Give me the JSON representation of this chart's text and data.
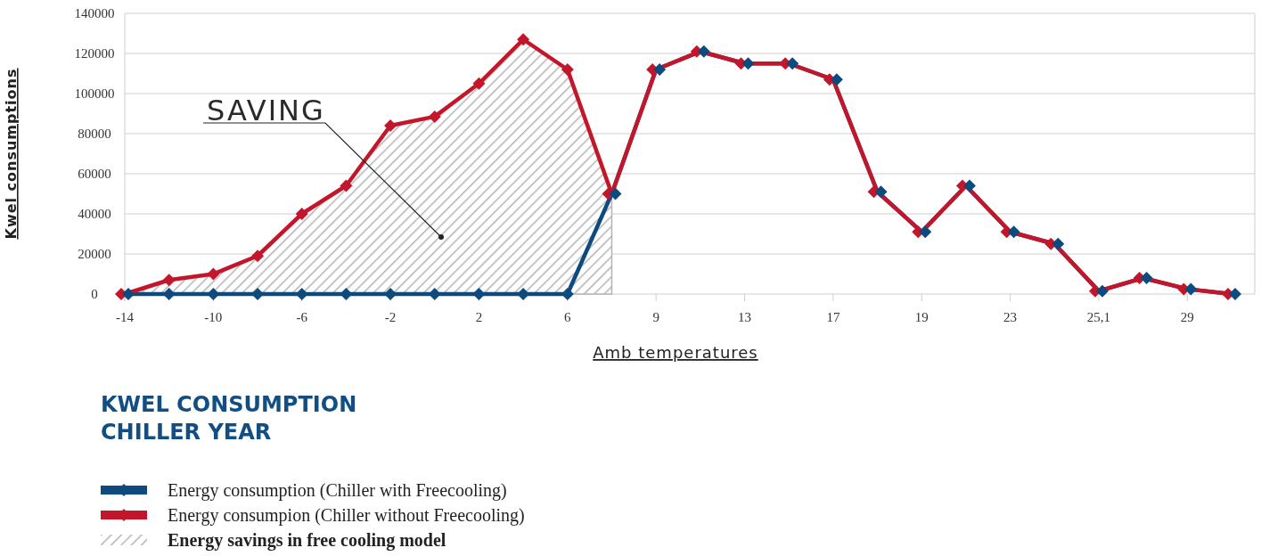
{
  "chart_data": {
    "type": "line",
    "title": "KWEL CONSUMPTION\nCHILLER YEAR",
    "xlabel": "Amb temperatures",
    "ylabel": "Kwel consumptions",
    "annotations": [
      "SAVING"
    ],
    "categories": [
      "-14",
      null,
      "-10",
      null,
      "-6",
      null,
      "-2",
      null,
      "2",
      null,
      "6",
      null,
      "9",
      null,
      "13",
      null,
      "17",
      null,
      "19",
      null,
      "23",
      null,
      "25,1",
      null,
      "29",
      null
    ],
    "series": [
      {
        "name": "Energy savings in free cooling model",
        "type": "area",
        "color": "#b3b3b3",
        "values": [
          0,
          7000,
          10000,
          19000,
          40000,
          54000,
          84000,
          88500,
          105000,
          127000,
          112000,
          50000,
          null,
          null,
          null,
          null,
          null,
          null,
          null,
          null,
          null,
          null,
          null,
          null,
          null,
          null
        ]
      },
      {
        "name": "Energy consumption (Chiller with Freecooling)",
        "marker": "diamond",
        "color": "#0d4a7e",
        "values": [
          0,
          0,
          0,
          0,
          0,
          0,
          0,
          0,
          0,
          0,
          0,
          50000,
          112000,
          121000,
          115000,
          115000,
          107000,
          51000,
          31000,
          54000,
          31000,
          25000,
          1500,
          8000,
          2500,
          0
        ]
      },
      {
        "name": "Energy consumpion (Chiller without Freecooling)",
        "marker": "diamond",
        "color": "#c4162a",
        "values": [
          0,
          7000,
          10000,
          19000,
          40000,
          54000,
          84000,
          88500,
          105000,
          127000,
          112000,
          50000,
          112000,
          121000,
          115000,
          115000,
          107000,
          51000,
          31000,
          54000,
          31000,
          25000,
          1500,
          8000,
          2500,
          0
        ]
      }
    ],
    "ylim": [
      0,
      140000
    ],
    "yticks": [
      0,
      20000,
      40000,
      60000,
      80000,
      100000,
      120000,
      140000
    ],
    "grid": "y",
    "legend": "bottom",
    "line_style": "solid"
  }
}
